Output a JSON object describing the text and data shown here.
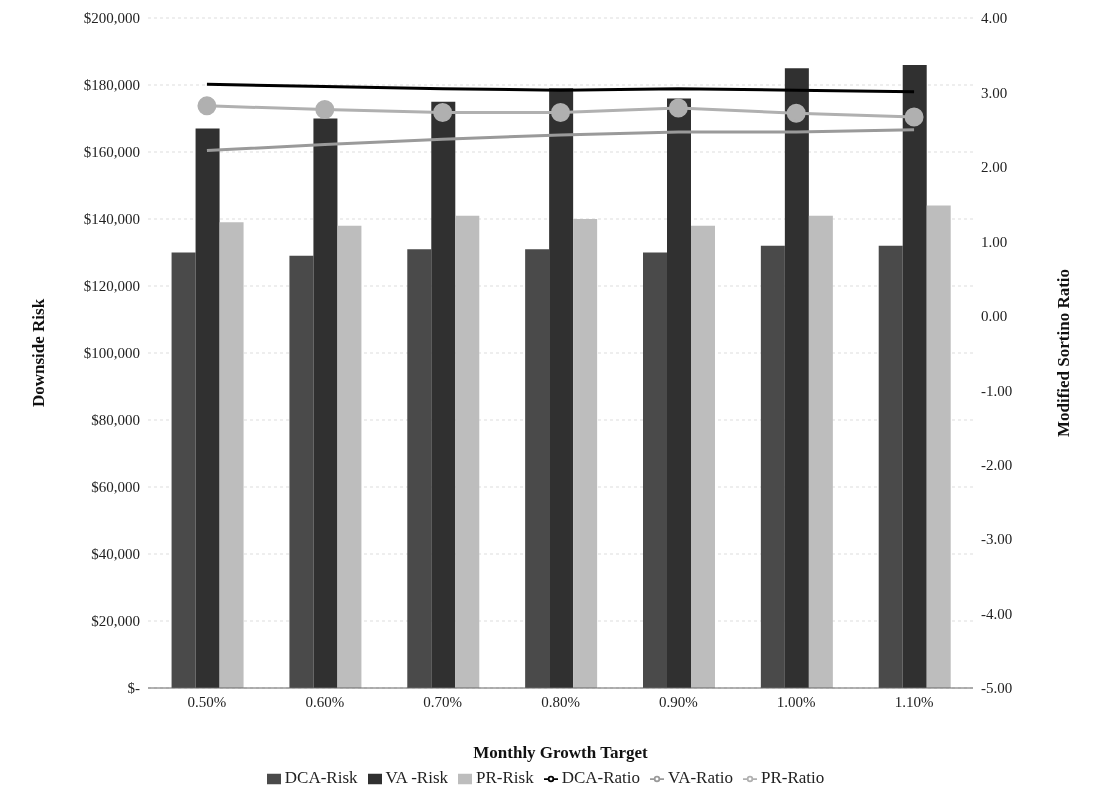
{
  "chart_data": {
    "type": "bar",
    "xlabel": "Monthly Growth Target",
    "ylabel": "Downside Risk",
    "y2label": "Modified Sortino Ratio",
    "categories": [
      "0.50%",
      "0.60%",
      "0.70%",
      "0.80%",
      "0.90%",
      "1.00%",
      "1.10%"
    ],
    "series": [
      {
        "name": "DCA-Risk",
        "color": "#4a4a4a",
        "values": [
          130000,
          129000,
          131000,
          131000,
          130000,
          132000,
          132000
        ]
      },
      {
        "name": "VA -Risk",
        "color": "#303030",
        "values": [
          167000,
          170000,
          175000,
          179000,
          176000,
          185000,
          186000
        ]
      },
      {
        "name": "PR-Risk",
        "color": "#bdbdbd",
        "values": [
          139000,
          138000,
          141000,
          140000,
          138000,
          141000,
          144000
        ]
      },
      {
        "name": "DCA-Ratio",
        "type": "line",
        "axis": "y2",
        "color": "#000000",
        "marker": "none",
        "values": [
          3.11,
          3.08,
          3.05,
          3.03,
          3.05,
          3.03,
          3.01
        ]
      },
      {
        "name": "VA-Ratio",
        "type": "line",
        "axis": "y2",
        "color": "#9a9a9a",
        "marker": "none",
        "values": [
          2.22,
          2.3,
          2.37,
          2.43,
          2.47,
          2.47,
          2.5
        ]
      },
      {
        "name": "PR-Ratio",
        "type": "line",
        "axis": "y2",
        "color": "#b0b0b0",
        "marker": "circle",
        "values": [
          2.82,
          2.77,
          2.73,
          2.73,
          2.79,
          2.72,
          2.67
        ]
      }
    ],
    "ylim": [
      0,
      200000
    ],
    "yticks": [
      {
        "value": 0,
        "label": "$-"
      },
      {
        "value": 20000,
        "label": "$20,000"
      },
      {
        "value": 40000,
        "label": "$40,000"
      },
      {
        "value": 60000,
        "label": "$60,000"
      },
      {
        "value": 80000,
        "label": "$80,000"
      },
      {
        "value": 100000,
        "label": "$100,000"
      },
      {
        "value": 120000,
        "label": "$120,000"
      },
      {
        "value": 140000,
        "label": "$140,000"
      },
      {
        "value": 160000,
        "label": "$160,000"
      },
      {
        "value": 180000,
        "label": "$180,000"
      },
      {
        "value": 200000,
        "label": "$200,000"
      }
    ],
    "y2lim": [
      -5,
      4
    ],
    "y2ticks": [
      {
        "value": -5,
        "label": "-5.00"
      },
      {
        "value": -4,
        "label": "-4.00"
      },
      {
        "value": -3,
        "label": "-3.00"
      },
      {
        "value": -2,
        "label": "-2.00"
      },
      {
        "value": -1,
        "label": "-1.00"
      },
      {
        "value": 0,
        "label": "0.00"
      },
      {
        "value": 1,
        "label": "1.00"
      },
      {
        "value": 2,
        "label": "2.00"
      },
      {
        "value": 3,
        "label": "3.00"
      },
      {
        "value": 4,
        "label": "4.00"
      }
    ],
    "grid": "y",
    "legend": "bottom"
  }
}
